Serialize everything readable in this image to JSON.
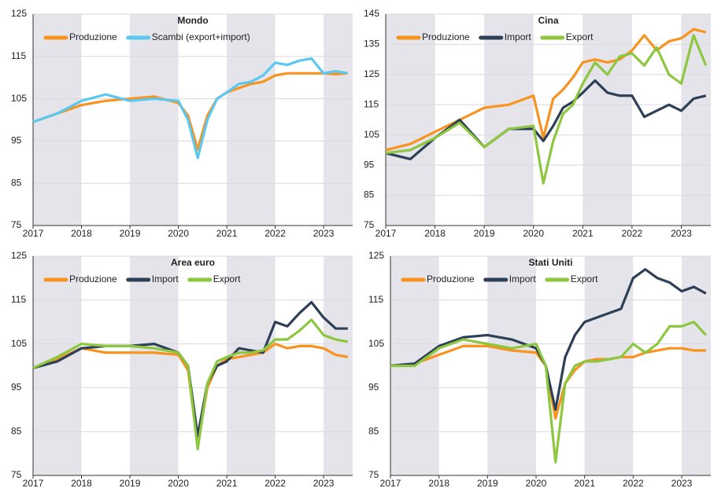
{
  "chart_data": [
    {
      "type": "line",
      "title": "Mondo",
      "x": [
        2017,
        2017.5,
        2018,
        2018.5,
        2019,
        2019.5,
        2020,
        2020.2,
        2020.4,
        2020.6,
        2020.8,
        2021,
        2021.25,
        2021.5,
        2021.75,
        2022,
        2022.25,
        2022.5,
        2022.75,
        2023,
        2023.25,
        2023.5
      ],
      "xlim": [
        2017,
        2023.6
      ],
      "xticks": [
        2017,
        2018,
        2019,
        2020,
        2021,
        2022,
        2023
      ],
      "ylim": [
        75,
        125
      ],
      "yticks": [
        75,
        85,
        95,
        105,
        115,
        125
      ],
      "grid": true,
      "series": [
        {
          "name": "Produzione",
          "color": "#f7931e",
          "values": [
            99.5,
            101.5,
            103.5,
            104.5,
            105,
            105.5,
            104,
            101,
            93,
            101,
            105,
            106.5,
            107.5,
            108.5,
            109,
            110.5,
            111,
            111,
            111,
            111,
            110.8,
            111
          ]
        },
        {
          "name": "Scambi (export+import)",
          "color": "#5bc8f0",
          "values": [
            99.5,
            101.5,
            104.5,
            106,
            104.5,
            105,
            104.5,
            100,
            91,
            100,
            105,
            106.5,
            108.5,
            109,
            110.5,
            113.5,
            113,
            114,
            114.5,
            111,
            111.5,
            111
          ]
        }
      ]
    },
    {
      "type": "line",
      "title": "Cina",
      "x": [
        2017,
        2017.5,
        2018,
        2018.5,
        2019,
        2019.5,
        2020,
        2020.2,
        2020.4,
        2020.6,
        2020.8,
        2021,
        2021.25,
        2021.5,
        2021.75,
        2022,
        2022.25,
        2022.5,
        2022.75,
        2023,
        2023.25,
        2023.5
      ],
      "xlim": [
        2017,
        2023.6
      ],
      "xticks": [
        2017,
        2018,
        2019,
        2020,
        2021,
        2022,
        2023
      ],
      "ylim": [
        75,
        145
      ],
      "yticks": [
        75,
        85,
        95,
        105,
        115,
        125,
        135,
        145
      ],
      "grid": true,
      "series": [
        {
          "name": "Produzione",
          "color": "#f7931e",
          "values": [
            100,
            102,
            106,
            110,
            114,
            115,
            118,
            104,
            117,
            120,
            124,
            129,
            130,
            129,
            130,
            133,
            138,
            133,
            136,
            137,
            140,
            139
          ]
        },
        {
          "name": "Import",
          "color": "#2e4057",
          "values": [
            99,
            97,
            104,
            110,
            101,
            107,
            107,
            103,
            108,
            114,
            116,
            119,
            123,
            119,
            118,
            118,
            111,
            113,
            115,
            113,
            117,
            118
          ]
        },
        {
          "name": "Export",
          "color": "#8dc63f",
          "values": [
            99,
            100,
            104,
            109,
            101,
            107,
            108,
            89,
            103,
            112,
            115,
            122,
            129,
            125,
            131,
            132,
            128,
            134,
            125,
            122,
            138,
            128
          ]
        }
      ]
    },
    {
      "type": "line",
      "title": "Area euro",
      "x": [
        2017,
        2017.5,
        2018,
        2018.5,
        2019,
        2019.5,
        2020,
        2020.2,
        2020.4,
        2020.6,
        2020.8,
        2021,
        2021.25,
        2021.5,
        2021.75,
        2022,
        2022.25,
        2022.5,
        2022.75,
        2023,
        2023.25,
        2023.5
      ],
      "xlim": [
        2017,
        2023.6
      ],
      "xticks": [
        2017,
        2018,
        2019,
        2020,
        2021,
        2022,
        2023
      ],
      "ylim": [
        75,
        125
      ],
      "yticks": [
        75,
        85,
        95,
        105,
        115,
        125
      ],
      "grid": true,
      "series": [
        {
          "name": "Produzione",
          "color": "#f7931e",
          "values": [
            99.5,
            101.5,
            104,
            103,
            103,
            103,
            102.5,
            99,
            82,
            95,
            100,
            101.5,
            102,
            102.5,
            103,
            105,
            104,
            104.5,
            104.5,
            104,
            102.5,
            102
          ]
        },
        {
          "name": "Import",
          "color": "#2e4057",
          "values": [
            99.5,
            101,
            104,
            104.5,
            104.5,
            105,
            103,
            100,
            84,
            96,
            100,
            101,
            104,
            103.5,
            103,
            110,
            109,
            112,
            114.5,
            111,
            108.5,
            108.5
          ]
        },
        {
          "name": "Export",
          "color": "#8dc63f",
          "values": [
            99.5,
            102,
            105,
            104.5,
            104.5,
            104,
            103,
            100,
            81,
            96,
            101,
            102,
            103,
            103,
            103.5,
            106,
            106,
            108,
            110.5,
            107,
            106,
            105.5
          ]
        }
      ]
    },
    {
      "type": "line",
      "title": "Stati Uniti",
      "x": [
        2017,
        2017.5,
        2018,
        2018.5,
        2019,
        2019.5,
        2020,
        2020.2,
        2020.4,
        2020.6,
        2020.8,
        2021,
        2021.25,
        2021.5,
        2021.75,
        2022,
        2022.25,
        2022.5,
        2022.75,
        2023,
        2023.25,
        2023.5
      ],
      "xlim": [
        2017,
        2023.6
      ],
      "xticks": [
        2017,
        2018,
        2019,
        2020,
        2021,
        2022,
        2023
      ],
      "ylim": [
        75,
        125
      ],
      "yticks": [
        75,
        85,
        95,
        105,
        115,
        125
      ],
      "grid": true,
      "series": [
        {
          "name": "Produzione",
          "color": "#f7931e",
          "values": [
            100,
            100.5,
            102.5,
            104.5,
            104.5,
            103.5,
            103,
            100,
            88,
            96,
            99,
            101,
            101.5,
            101.5,
            102,
            102,
            103,
            103.5,
            104,
            104,
            103.5,
            103.5
          ]
        },
        {
          "name": "Import",
          "color": "#2e4057",
          "values": [
            100,
            100.5,
            104.5,
            106.5,
            107,
            106,
            104,
            100,
            90,
            102,
            107,
            110,
            111,
            112,
            113,
            120,
            122,
            120,
            119,
            117,
            118,
            116.5
          ]
        },
        {
          "name": "Export",
          "color": "#8dc63f",
          "values": [
            100,
            100,
            104,
            106,
            105,
            104,
            105,
            100,
            78,
            96,
            100,
            101,
            101,
            101.5,
            102,
            105,
            103,
            105,
            109,
            109,
            110,
            107
          ]
        }
      ]
    }
  ]
}
